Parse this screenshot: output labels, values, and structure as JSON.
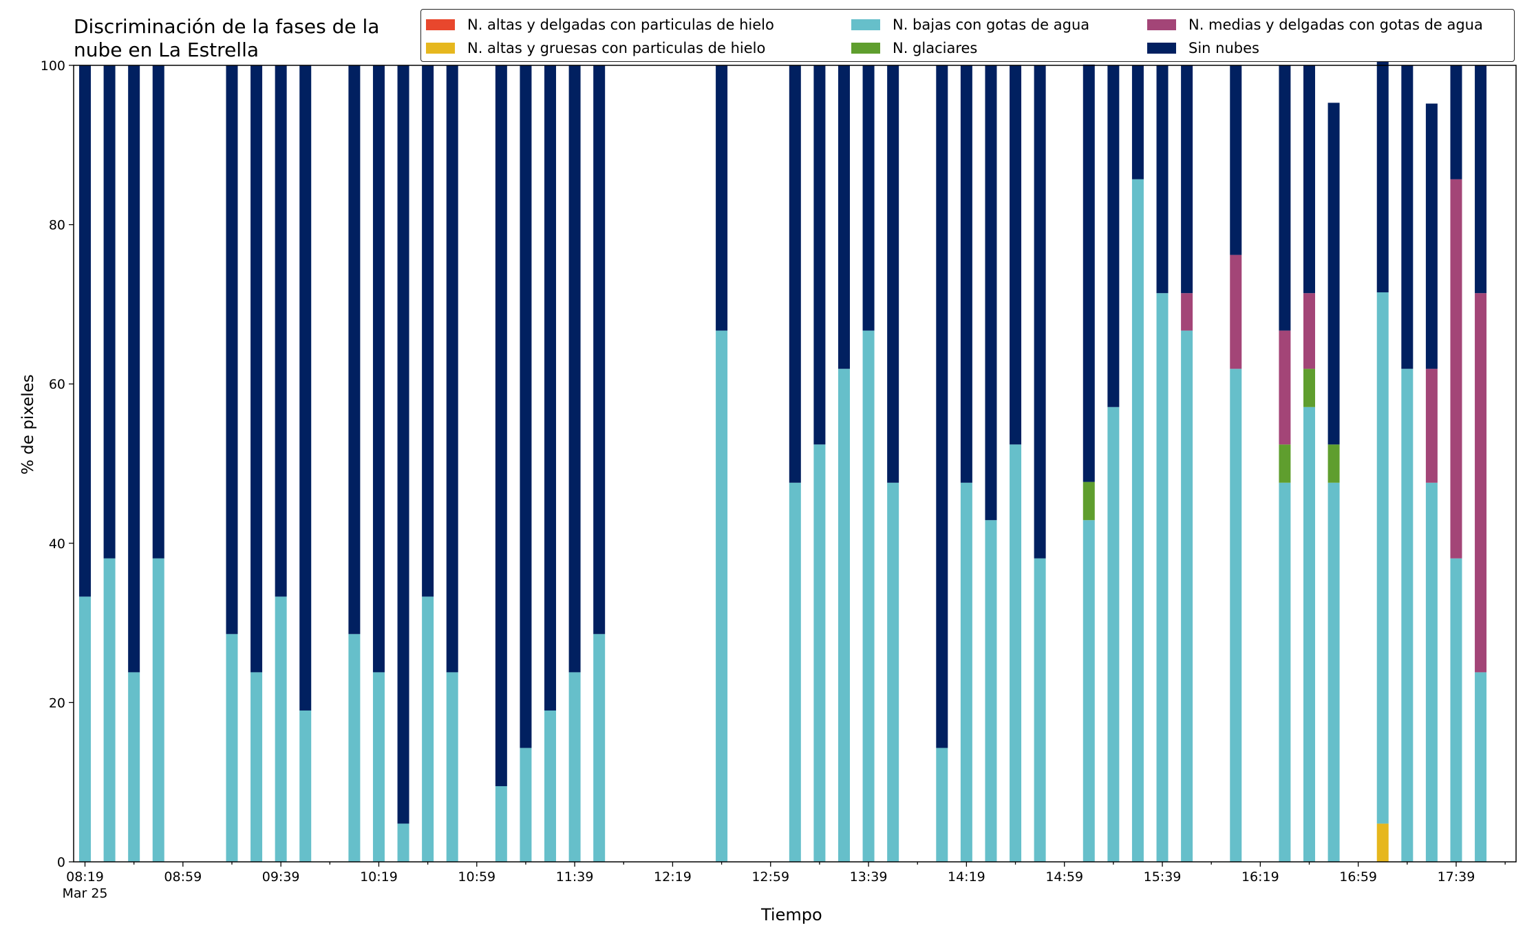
{
  "chart_data": {
    "type": "bar",
    "stacked": true,
    "title": "Discriminación de la fases de la\nnube en La Estrella",
    "xlabel": "Tiempo",
    "ylabel": "% de pixeles",
    "ylim": [
      0,
      100
    ],
    "yticks": [
      0,
      20,
      40,
      60,
      80,
      100
    ],
    "x_tick_labels": [
      "08:19",
      "08:59",
      "09:39",
      "10:19",
      "10:59",
      "11:39",
      "12:19",
      "12:59",
      "13:39",
      "14:19",
      "14:59",
      "15:39",
      "16:19",
      "16:59",
      "17:39"
    ],
    "x_date_label": "Mar 25",
    "legend_position": "top-right",
    "grid": false,
    "categories": [
      "08:19",
      "08:29",
      "08:39",
      "08:49",
      "08:59",
      "09:09",
      "09:19",
      "09:29",
      "09:39",
      "09:49",
      "09:59",
      "10:09",
      "10:19",
      "10:29",
      "10:39",
      "10:49",
      "10:59",
      "11:09",
      "11:19",
      "11:29",
      "11:39",
      "11:49",
      "11:59",
      "12:09",
      "12:19",
      "12:29",
      "12:39",
      "12:49",
      "12:59",
      "13:09",
      "13:19",
      "13:29",
      "13:39",
      "13:49",
      "13:59",
      "14:09",
      "14:19",
      "14:29",
      "14:39",
      "14:49",
      "14:59",
      "15:09",
      "15:19",
      "15:29",
      "15:39",
      "15:49",
      "15:59",
      "16:09",
      "16:19",
      "16:29",
      "16:39",
      "16:49",
      "16:59",
      "17:09",
      "17:19",
      "17:29",
      "17:39",
      "17:49"
    ],
    "series": [
      {
        "name": "N. altas y delgadas con particulas de hielo",
        "color": "#e8472d",
        "values": [
          0,
          0,
          0,
          0,
          0,
          0,
          0,
          0,
          0,
          0,
          0,
          0,
          0,
          0,
          0,
          0,
          0,
          0,
          0,
          0,
          0,
          0,
          0,
          0,
          0,
          0,
          0,
          0,
          0,
          0,
          0,
          0,
          0,
          0,
          0,
          0,
          0,
          0,
          0,
          0,
          0,
          0,
          0,
          0,
          0,
          0,
          0,
          0,
          0,
          0,
          0,
          0,
          0,
          0,
          0,
          0,
          0,
          0
        ]
      },
      {
        "name": "N. altas y gruesas con particulas de hielo",
        "color": "#e6b71e",
        "values": [
          0,
          0,
          0,
          0,
          0,
          0,
          0,
          0,
          0,
          0,
          0,
          0,
          0,
          0,
          0,
          0,
          0,
          0,
          0,
          0,
          0,
          0,
          0,
          0,
          0,
          0,
          0,
          0,
          0,
          0,
          0,
          0,
          0,
          0,
          0,
          0,
          0,
          0,
          0,
          0,
          0,
          0,
          0,
          0,
          0,
          0,
          0,
          0,
          0,
          0,
          0,
          0,
          0,
          4.8,
          0,
          0,
          0,
          0
        ]
      },
      {
        "name": "N. bajas con gotas de agua",
        "color": "#66bfca",
        "values": [
          33.3,
          38.1,
          23.8,
          38.1,
          0,
          0,
          28.6,
          23.8,
          33.3,
          19.0,
          0,
          28.6,
          23.8,
          4.8,
          33.3,
          23.8,
          0,
          9.5,
          14.3,
          19.0,
          23.8,
          28.6,
          0,
          0,
          0,
          0,
          66.7,
          0,
          0,
          47.6,
          52.4,
          61.9,
          66.7,
          47.6,
          0,
          14.3,
          47.6,
          42.9,
          52.4,
          38.1,
          0,
          42.9,
          57.1,
          85.7,
          71.4,
          66.7,
          0,
          61.9,
          0,
          47.6,
          57.1,
          47.6,
          0,
          66.7,
          61.9,
          47.6,
          38.1,
          23.8
        ]
      },
      {
        "name": "N. glaciares",
        "color": "#5f9e2e",
        "values": [
          0,
          0,
          0,
          0,
          0,
          0,
          0,
          0,
          0,
          0,
          0,
          0,
          0,
          0,
          0,
          0,
          0,
          0,
          0,
          0,
          0,
          0,
          0,
          0,
          0,
          0,
          0,
          0,
          0,
          0,
          0,
          0,
          0,
          0,
          0,
          0,
          0,
          0,
          0,
          0,
          0,
          4.8,
          0,
          0,
          0,
          0,
          0,
          0,
          0,
          4.8,
          4.8,
          4.8,
          0,
          0,
          0,
          0,
          0,
          0
        ]
      },
      {
        "name": "N. medias y delgadas con gotas de agua",
        "color": "#a34577",
        "values": [
          0,
          0,
          0,
          0,
          0,
          0,
          0,
          0,
          0,
          0,
          0,
          0,
          0,
          0,
          0,
          0,
          0,
          0,
          0,
          0,
          0,
          0,
          0,
          0,
          0,
          0,
          0,
          0,
          0,
          0,
          0,
          0,
          0,
          0,
          0,
          0,
          0,
          0,
          0,
          0,
          0,
          0,
          0,
          0,
          0,
          4.7,
          0,
          14.3,
          0,
          14.3,
          9.5,
          0,
          0,
          0,
          0,
          14.3,
          47.6,
          47.6
        ]
      },
      {
        "name": "Sin nubes",
        "color": "#012060",
        "values": [
          66.7,
          61.9,
          76.2,
          61.9,
          0,
          0,
          71.4,
          76.2,
          66.7,
          81.0,
          0,
          71.4,
          76.2,
          95.2,
          66.7,
          76.2,
          0,
          90.5,
          85.7,
          81.0,
          76.2,
          71.4,
          0,
          0,
          0,
          0,
          33.3,
          0,
          0,
          52.4,
          47.6,
          38.1,
          33.3,
          52.4,
          0,
          85.7,
          52.4,
          57.1,
          47.6,
          61.9,
          0,
          52.4,
          42.9,
          14.3,
          28.6,
          28.6,
          0,
          23.8,
          0,
          33.3,
          28.6,
          42.9,
          0,
          33.3,
          38.1,
          33.3,
          14.3,
          28.6
        ]
      }
    ]
  }
}
